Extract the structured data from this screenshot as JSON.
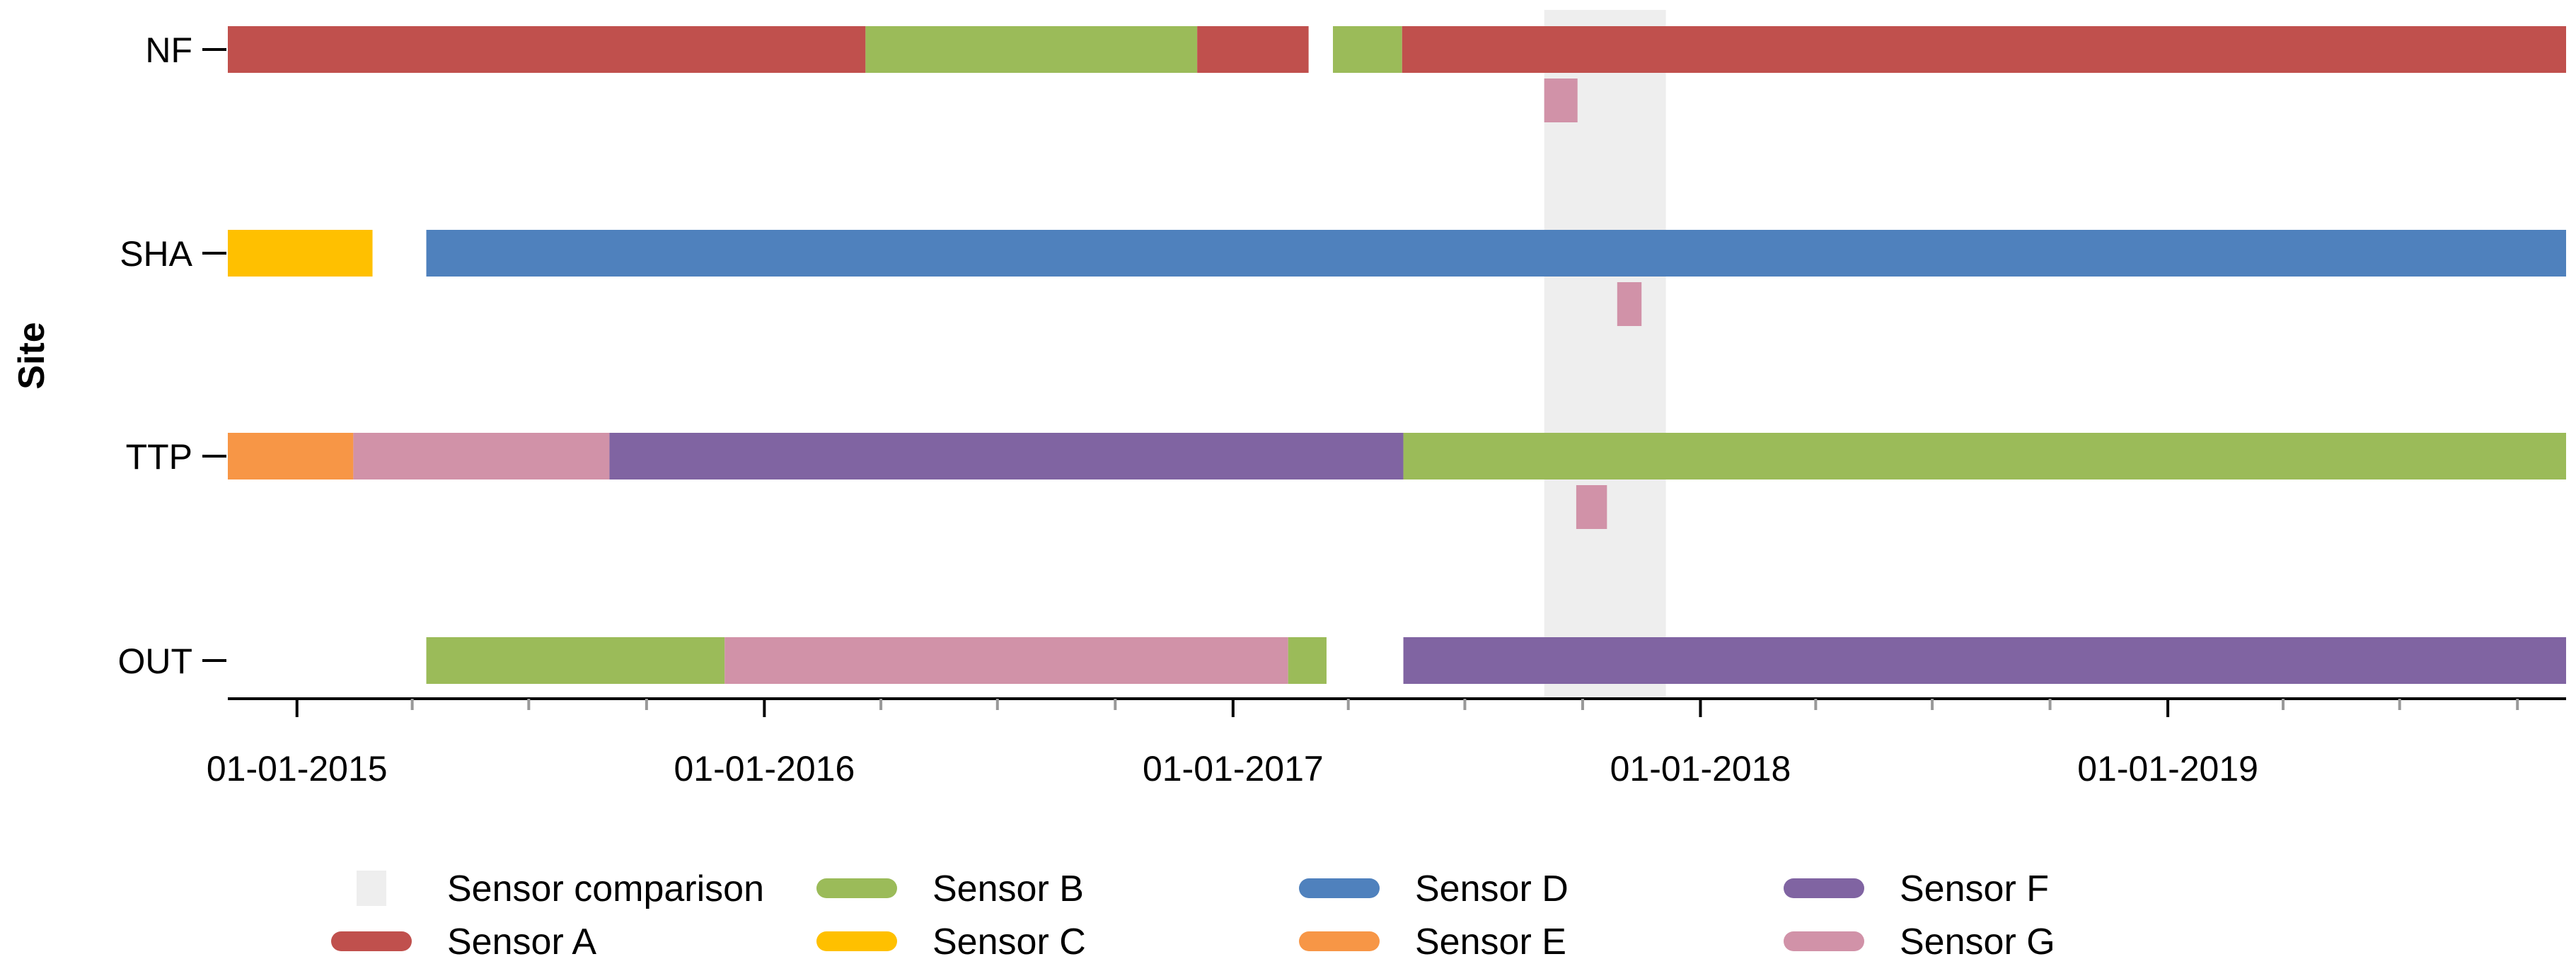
{
  "chart_data": {
    "type": "timeline",
    "ylabel": "Site",
    "xlabel": "",
    "sites": [
      "NF",
      "SHA",
      "TTP",
      "OUT"
    ],
    "xlim": [
      "2014-11-08",
      "2019-11-08"
    ],
    "x_ticks": [
      "01-01-2015",
      "01-01-2016",
      "01-01-2017",
      "01-01-2018",
      "01-01-2019"
    ],
    "shaded_regions": [
      {
        "label": "Sensor comparison",
        "start": "2017-09-01",
        "end": "2017-12-05",
        "color": "#eeeeee"
      }
    ],
    "sensors": [
      {
        "key": "A",
        "label": "Sensor A",
        "color": "#c0504d"
      },
      {
        "key": "B",
        "label": "Sensor B",
        "color": "#9bbb59"
      },
      {
        "key": "C",
        "label": "Sensor C",
        "color": "#ffc000"
      },
      {
        "key": "D",
        "label": "Sensor D",
        "color": "#4f81bd"
      },
      {
        "key": "E",
        "label": "Sensor E",
        "color": "#f79646"
      },
      {
        "key": "F",
        "label": "Sensor F",
        "color": "#8064a2"
      },
      {
        "key": "G",
        "label": "Sensor G",
        "color": "#d192a8"
      }
    ],
    "segments": [
      {
        "site": "NF",
        "sensor": "A",
        "start": "2014-11-08",
        "end": "2016-03-20",
        "lane": "main"
      },
      {
        "site": "NF",
        "sensor": "B",
        "start": "2016-03-20",
        "end": "2016-12-04",
        "lane": "main"
      },
      {
        "site": "NF",
        "sensor": "A",
        "start": "2016-12-04",
        "end": "2017-03-01",
        "lane": "main"
      },
      {
        "site": "NF",
        "sensor": "B",
        "start": "2017-03-20",
        "end": "2017-05-13",
        "lane": "main"
      },
      {
        "site": "NF",
        "sensor": "A",
        "start": "2017-05-13",
        "end": "2019-11-08",
        "lane": "main"
      },
      {
        "site": "NF",
        "sensor": "G",
        "start": "2017-09-01",
        "end": "2017-09-27",
        "lane": "sub"
      },
      {
        "site": "SHA",
        "sensor": "C",
        "start": "2014-11-08",
        "end": "2015-03-01",
        "lane": "main"
      },
      {
        "site": "SHA",
        "sensor": "D",
        "start": "2015-04-12",
        "end": "2019-11-08",
        "lane": "main"
      },
      {
        "site": "SHA",
        "sensor": "G",
        "start": "2017-10-28",
        "end": "2017-11-16",
        "lane": "sub"
      },
      {
        "site": "TTP",
        "sensor": "E",
        "start": "2014-11-08",
        "end": "2015-02-14",
        "lane": "main"
      },
      {
        "site": "TTP",
        "sensor": "G",
        "start": "2015-02-14",
        "end": "2015-09-02",
        "lane": "main"
      },
      {
        "site": "TTP",
        "sensor": "F",
        "start": "2015-09-02",
        "end": "2017-05-14",
        "lane": "main"
      },
      {
        "site": "TTP",
        "sensor": "B",
        "start": "2017-05-14",
        "end": "2019-11-08",
        "lane": "main"
      },
      {
        "site": "TTP",
        "sensor": "G",
        "start": "2017-09-26",
        "end": "2017-10-20",
        "lane": "sub"
      },
      {
        "site": "OUT",
        "sensor": "B",
        "start": "2015-04-12",
        "end": "2015-12-01",
        "lane": "main"
      },
      {
        "site": "OUT",
        "sensor": "G",
        "start": "2015-12-01",
        "end": "2017-02-13",
        "lane": "main"
      },
      {
        "site": "OUT",
        "sensor": "B",
        "start": "2017-02-13",
        "end": "2017-03-15",
        "lane": "main"
      },
      {
        "site": "OUT",
        "sensor": "F",
        "start": "2017-05-14",
        "end": "2019-11-08",
        "lane": "main"
      }
    ],
    "legend": [
      {
        "label": "Sensor comparison",
        "kind": "shade",
        "color": "#eeeeee"
      },
      {
        "label": "Sensor A",
        "kind": "line",
        "color": "#c0504d"
      },
      {
        "label": "Sensor B",
        "kind": "line",
        "color": "#9bbb59"
      },
      {
        "label": "Sensor C",
        "kind": "line",
        "color": "#ffc000"
      },
      {
        "label": "Sensor D",
        "kind": "line",
        "color": "#4f81bd"
      },
      {
        "label": "Sensor E",
        "kind": "line",
        "color": "#f79646"
      },
      {
        "label": "Sensor F",
        "kind": "line",
        "color": "#8064a2"
      },
      {
        "label": "Sensor G",
        "kind": "line",
        "color": "#d192a8"
      }
    ]
  }
}
